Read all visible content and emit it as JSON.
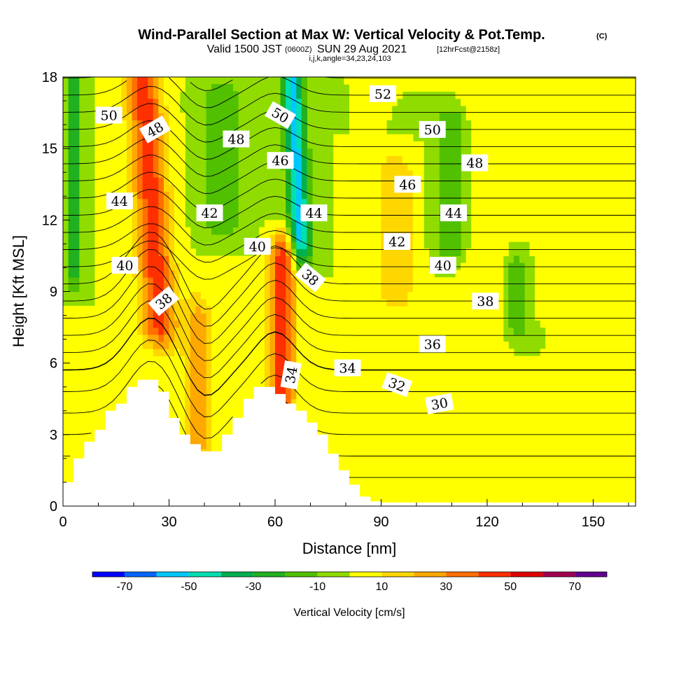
{
  "title": {
    "main": "Wind-Parallel Section at Max W: Vertical Velocity & Pot.Temp.",
    "main_small": "(C)",
    "valid_a": "Valid 1500 JST",
    "valid_b": "(0600Z)",
    "valid_c": "SUN 29 Aug 2021",
    "valid_d": "[12hrFcst@2158z]",
    "subtitle": "i,j,k,angle=34,23,24,103"
  },
  "chart_data": {
    "type": "heatmap",
    "xlabel": "Distance [nm]",
    "ylabel": "Height [Kft MSL]",
    "xlim": [
      0,
      162
    ],
    "ylim": [
      0,
      18
    ],
    "x_ticks": [
      "0",
      "30",
      "60",
      "90",
      "120",
      "150"
    ],
    "x_tick_values": [
      0,
      30,
      60,
      90,
      120,
      150
    ],
    "y_ticks": [
      "0",
      "3",
      "6",
      "9",
      "12",
      "15",
      "18"
    ],
    "y_tick_values": [
      0,
      3,
      6,
      9,
      12,
      15,
      18
    ],
    "grid": false,
    "field": "Vertical Velocity [cm/s]",
    "colorbar": {
      "label": "Vertical Velocity [cm/s]",
      "bounds": [
        -80,
        -70,
        -60,
        -50,
        -40,
        -30,
        -20,
        -10,
        0,
        10,
        20,
        30,
        40,
        50,
        60,
        70,
        80
      ],
      "colors": [
        "#0000ff",
        "#0066ff",
        "#00c8ff",
        "#00dfb0",
        "#00b050",
        "#20b020",
        "#50c000",
        "#90dc00",
        "#ffff00",
        "#ffd700",
        "#ffa800",
        "#ff7000",
        "#ff3000",
        "#e00000",
        "#a00050",
        "#600090"
      ],
      "tick_labels": [
        "-70",
        "-50",
        "-30",
        "-10",
        "10",
        "30",
        "50",
        "70"
      ],
      "tick_values": [
        -70,
        -50,
        -30,
        -10,
        10,
        30,
        50,
        70
      ]
    },
    "contours": {
      "field": "Potential Temperature [C]",
      "interval": 1,
      "labels": [
        {
          "text": "50",
          "x": 13,
          "y": 16.4,
          "angle": 0
        },
        {
          "text": "48",
          "x": 26,
          "y": 15.8,
          "angle": -30
        },
        {
          "text": "48",
          "x": 49,
          "y": 15.4,
          "angle": 0
        },
        {
          "text": "50",
          "x": 61.5,
          "y": 16.4,
          "angle": 30
        },
        {
          "text": "52",
          "x": 90.5,
          "y": 17.3,
          "angle": 0
        },
        {
          "text": "50",
          "x": 104.5,
          "y": 15.8,
          "angle": 0
        },
        {
          "text": "48",
          "x": 116.5,
          "y": 14.4,
          "angle": 0
        },
        {
          "text": "46",
          "x": 61.5,
          "y": 14.5,
          "angle": 0
        },
        {
          "text": "46",
          "x": 97.5,
          "y": 13.5,
          "angle": 0
        },
        {
          "text": "44",
          "x": 16,
          "y": 12.8,
          "angle": 0
        },
        {
          "text": "42",
          "x": 41.5,
          "y": 12.3,
          "angle": 0
        },
        {
          "text": "44",
          "x": 71,
          "y": 12.3,
          "angle": 0
        },
        {
          "text": "44",
          "x": 110.5,
          "y": 12.3,
          "angle": 0
        },
        {
          "text": "42",
          "x": 94.5,
          "y": 11.1,
          "angle": 0
        },
        {
          "text": "40",
          "x": 17.5,
          "y": 10.1,
          "angle": 0
        },
        {
          "text": "40",
          "x": 55,
          "y": 10.9,
          "angle": 0
        },
        {
          "text": "40",
          "x": 107.5,
          "y": 10.1,
          "angle": 0
        },
        {
          "text": "38",
          "x": 70,
          "y": 9.6,
          "angle": 40
        },
        {
          "text": "38",
          "x": 28.5,
          "y": 8.6,
          "angle": -40
        },
        {
          "text": "38",
          "x": 119.5,
          "y": 8.6,
          "angle": 0
        },
        {
          "text": "36",
          "x": 104.5,
          "y": 6.8,
          "angle": 0
        },
        {
          "text": "34",
          "x": 80.5,
          "y": 5.8,
          "angle": 0
        },
        {
          "text": "34",
          "x": 64.5,
          "y": 5.5,
          "angle": -80
        },
        {
          "text": "32",
          "x": 94.5,
          "y": 5.1,
          "angle": 20
        },
        {
          "text": "30",
          "x": 106.5,
          "y": 4.3,
          "angle": -10
        }
      ]
    },
    "w_field": {
      "description": "vertical velocity structures",
      "bands": [
        {
          "x_center": 25,
          "y_bottom": 7.5,
          "y_top": 18,
          "tilt": -0.45,
          "width": 5,
          "peak": 45
        },
        {
          "x_center": 62,
          "y_bottom": 4.5,
          "y_top": 10.5,
          "tilt": 0,
          "width": 3.5,
          "peak": 50
        },
        {
          "x_center": 38,
          "y_bottom": 2.5,
          "y_top": 8,
          "tilt": 0,
          "width": 4,
          "peak": 25
        },
        {
          "x_center": 66,
          "y_bottom": 11,
          "y_top": 18,
          "tilt": -0.35,
          "width": 3,
          "peak": -55
        },
        {
          "x_center": 3,
          "y_bottom": 10,
          "y_top": 18,
          "tilt": 0,
          "width": 2,
          "peak": -30
        },
        {
          "x_center": 45,
          "y_bottom": 12,
          "y_top": 17,
          "tilt": 0,
          "width": 6,
          "peak": -20
        },
        {
          "x_center": 110,
          "y_bottom": 11,
          "y_top": 16,
          "tilt": 0,
          "width": 5,
          "peak": -20
        },
        {
          "x_center": 128,
          "y_bottom": 7.5,
          "y_top": 10,
          "tilt": 0,
          "width": 4,
          "peak": -18
        },
        {
          "x_center": 94,
          "y_bottom": 9,
          "y_top": 14,
          "tilt": 0,
          "width": 6,
          "peak": 18
        },
        {
          "x_center": 120,
          "y_bottom": 5,
          "y_top": 18,
          "tilt": 0,
          "width": 8,
          "peak": 10
        },
        {
          "x_center": 140,
          "y_bottom": 9,
          "y_top": 18,
          "tilt": 0,
          "width": 6,
          "peak": 10
        }
      ]
    },
    "terrain": [
      {
        "x": 0,
        "y": 1.0
      },
      {
        "x": 3,
        "y": 2.0
      },
      {
        "x": 6,
        "y": 2.7
      },
      {
        "x": 9,
        "y": 3.2
      },
      {
        "x": 12,
        "y": 4.0
      },
      {
        "x": 15,
        "y": 4.3
      },
      {
        "x": 18,
        "y": 5.0
      },
      {
        "x": 21,
        "y": 5.3
      },
      {
        "x": 24,
        "y": 5.3
      },
      {
        "x": 27,
        "y": 4.8
      },
      {
        "x": 30,
        "y": 3.7
      },
      {
        "x": 33,
        "y": 3.0
      },
      {
        "x": 36,
        "y": 2.6
      },
      {
        "x": 39,
        "y": 2.3
      },
      {
        "x": 42,
        "y": 2.3
      },
      {
        "x": 45,
        "y": 3.0
      },
      {
        "x": 48,
        "y": 3.7
      },
      {
        "x": 51,
        "y": 4.5
      },
      {
        "x": 54,
        "y": 5.0
      },
      {
        "x": 57,
        "y": 5.0
      },
      {
        "x": 60,
        "y": 4.7
      },
      {
        "x": 63,
        "y": 4.3
      },
      {
        "x": 66,
        "y": 4.0
      },
      {
        "x": 69,
        "y": 3.5
      },
      {
        "x": 72,
        "y": 3.0
      },
      {
        "x": 75,
        "y": 2.2
      },
      {
        "x": 78,
        "y": 1.5
      },
      {
        "x": 81,
        "y": 0.9
      },
      {
        "x": 84,
        "y": 0.4
      },
      {
        "x": 87,
        "y": 0.2
      },
      {
        "x": 90,
        "y": 0.15
      },
      {
        "x": 162,
        "y": 0.15
      }
    ]
  }
}
